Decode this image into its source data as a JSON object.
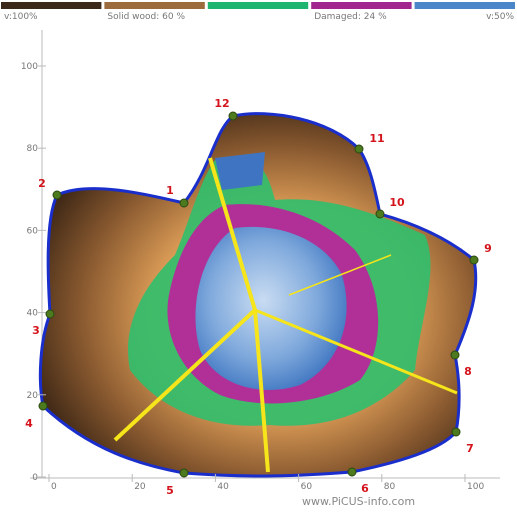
{
  "legend": {
    "segments": [
      {
        "color": "#3b2818",
        "label": "v:100%"
      },
      {
        "color": "#9b6a3d",
        "label": "Solid wood: 60 %"
      },
      {
        "color": "#1fb46f"
      },
      {
        "color": "#a1278f",
        "label": "Damaged: 24 %"
      },
      {
        "color": "#4a86c8",
        "label": "v:50%"
      }
    ]
  },
  "axes": {
    "xticks": [
      0,
      20,
      40,
      60,
      80,
      100
    ],
    "yticks": [
      0,
      20,
      40,
      60,
      80,
      100
    ]
  },
  "sensors": [
    "1",
    "2",
    "3",
    "4",
    "5",
    "6",
    "7",
    "8",
    "9",
    "10",
    "11",
    "12"
  ],
  "watermark": "www.PiCUS-info.com"
}
